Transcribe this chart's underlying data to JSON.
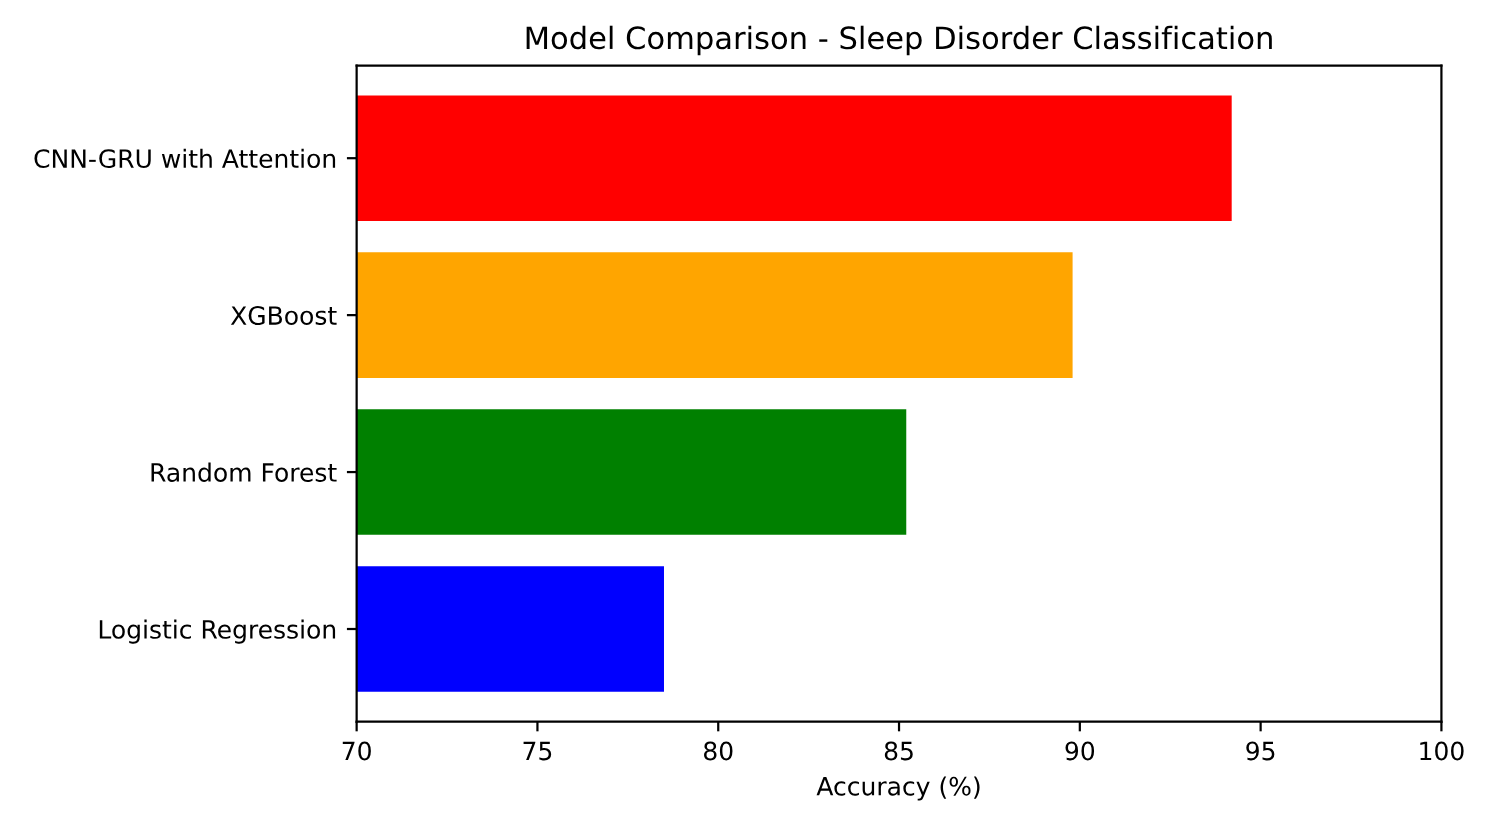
{
  "chart_data": {
    "type": "bar",
    "orientation": "horizontal",
    "title": "Model Comparison - Sleep Disorder Classification",
    "xlabel": "Accuracy (%)",
    "categories": [
      "CNN-GRU with Attention",
      "XGBoost",
      "Random Forest",
      "Logistic Regression"
    ],
    "values": [
      94.2,
      89.8,
      85.2,
      78.5
    ],
    "colors": [
      "#ff0000",
      "#ffa500",
      "#008000",
      "#0000ff"
    ],
    "xlim": [
      70,
      100
    ],
    "xticks": [
      70,
      75,
      80,
      85,
      90,
      95,
      100
    ],
    "grid": false,
    "legend": false
  }
}
